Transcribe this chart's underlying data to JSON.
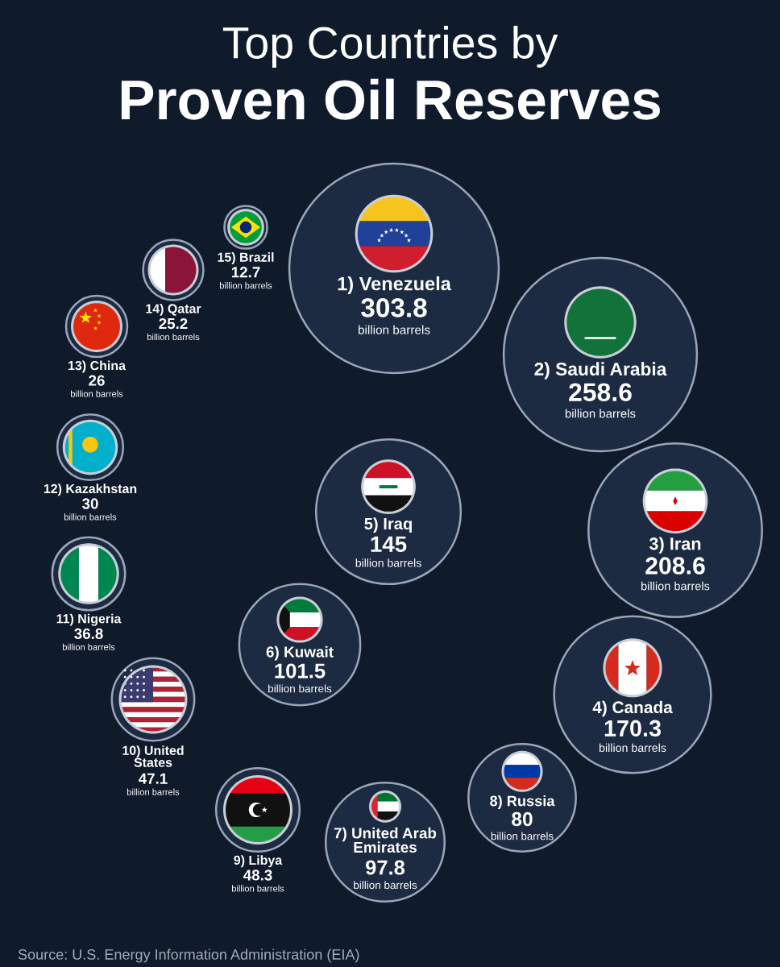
{
  "chart_data": {
    "type": "other",
    "title": "Top Countries by",
    "subtitle": "Proven Oil Reserves",
    "categories": [
      "1) Venezuela",
      "2) Saudi Arabia",
      "3) Iran",
      "4) Canada",
      "5) Iraq",
      "6) Kuwait",
      "7) United Arab Emirates",
      "8) Russia",
      "9) Libya",
      "10) United States",
      "11) Nigeria",
      "12) Kazakhstan",
      "13) China",
      "14) Qatar",
      "15) Brazil"
    ],
    "values": [
      303.8,
      258.6,
      208.6,
      170.3,
      145,
      101.5,
      97.8,
      80,
      48.3,
      47.1,
      36.8,
      30,
      26,
      25.2,
      12.7
    ],
    "color": "#1c2b42",
    "data_labels": true,
    "ylabel": "billion barrels",
    "annotations": [
      "Source: U.S. Energy Information Administration (EIA)"
    ]
  }
}
